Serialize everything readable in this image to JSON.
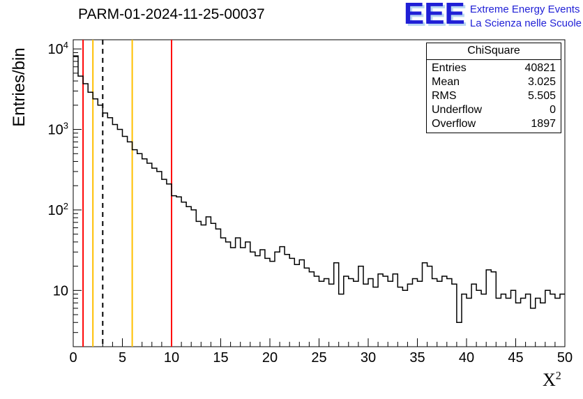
{
  "title": "PARM-01-2024-11-25-00037",
  "axes": {
    "y_label": "Entries/bin",
    "x_title": {
      "base": "X",
      "exp": "2"
    }
  },
  "logo": {
    "text": "EEE",
    "line1": "Extreme Energy Events",
    "line2": "La Scienza nelle Scuole",
    "color": "#1f1fd6"
  },
  "stats": {
    "title": "ChiSquare",
    "rows": [
      [
        "Entries",
        "40821"
      ],
      [
        "Mean",
        "3.025"
      ],
      [
        "RMS",
        "5.505"
      ],
      [
        "Underflow",
        "0"
      ],
      [
        "Overflow",
        "1897"
      ]
    ]
  },
  "chart_data": {
    "type": "histogram",
    "title": "PARM-01-2024-11-25-00037",
    "xlabel": "X^2",
    "ylabel": "Entries/bin",
    "yscale": "log",
    "xlim": [
      0,
      50
    ],
    "ylim": [
      2,
      13000
    ],
    "bin_width": 0.5,
    "x_start": 0,
    "x_ticks": [
      0,
      5,
      10,
      15,
      20,
      25,
      30,
      35,
      40,
      45,
      50
    ],
    "y_ticks": [
      {
        "value": 10,
        "base": "10",
        "exp": ""
      },
      {
        "value": 100,
        "base": "10",
        "exp": "2"
      },
      {
        "value": 1000,
        "base": "10",
        "exp": "3"
      },
      {
        "value": 10000,
        "base": "10",
        "exp": "4"
      }
    ],
    "line_color": "#000000",
    "marker_lines": [
      {
        "x": 1,
        "color": "#ff0000",
        "style": "solid"
      },
      {
        "x": 2,
        "color": "#ffc000",
        "style": "solid"
      },
      {
        "x": 3,
        "color": "#000000",
        "style": "dashed"
      },
      {
        "x": 6,
        "color": "#ffc000",
        "style": "solid"
      },
      {
        "x": 10,
        "color": "#ff0000",
        "style": "solid"
      }
    ],
    "values": [
      8200,
      4600,
      3700,
      2900,
      2400,
      2000,
      1600,
      1400,
      1150,
      1000,
      820,
      700,
      560,
      500,
      430,
      380,
      330,
      300,
      240,
      210,
      150,
      145,
      125,
      110,
      100,
      72,
      65,
      82,
      68,
      58,
      45,
      40,
      34,
      45,
      34,
      40,
      30,
      27,
      32,
      25,
      23,
      30,
      35,
      28,
      25,
      21,
      24,
      19,
      17,
      15,
      13,
      14,
      12,
      22,
      9,
      15,
      14,
      13,
      20,
      12,
      14,
      11,
      16,
      15,
      13,
      16,
      11,
      10,
      12,
      14,
      13,
      22,
      20,
      14,
      13,
      15,
      14,
      12,
      4,
      9,
      8,
      12,
      10,
      9,
      18,
      17,
      8,
      9,
      8,
      10,
      7,
      8,
      9,
      6,
      8,
      7,
      10,
      9,
      8,
      9
    ]
  }
}
